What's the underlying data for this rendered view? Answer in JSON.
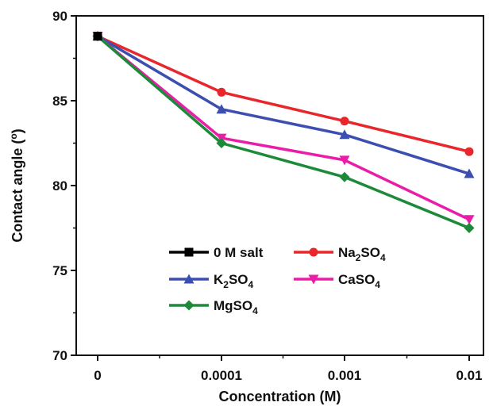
{
  "chart_data": {
    "type": "line",
    "xlabel": "Concentration (M)",
    "ylabel": "Contact angle (",
    "ylabel_unit_sup": "o",
    "ylabel_close": ")",
    "categories": [
      "0",
      "0.0001",
      "0.001",
      "0.01"
    ],
    "ylim": [
      70,
      90
    ],
    "yticks": [
      "70",
      "75",
      "80",
      "85",
      "90"
    ],
    "grid": false,
    "legend_position": "bottom-left inside plot",
    "series": [
      {
        "name": "0 M salt",
        "name_parts": [
          [
            "0 M salt",
            false
          ]
        ],
        "color": "#000000",
        "marker": "square",
        "values": [
          88.8,
          null,
          null,
          null
        ]
      },
      {
        "name": "Na2SO4",
        "name_parts": [
          [
            "Na",
            false
          ],
          [
            "2",
            true
          ],
          [
            "SO",
            false
          ],
          [
            "4",
            true
          ]
        ],
        "color": "#e8262b",
        "marker": "circle",
        "values": [
          88.8,
          85.5,
          83.8,
          82.0
        ]
      },
      {
        "name": "K2SO4",
        "name_parts": [
          [
            "K",
            false
          ],
          [
            "2",
            true
          ],
          [
            "SO",
            false
          ],
          [
            "4",
            true
          ]
        ],
        "color": "#3c4fb0",
        "marker": "triangle-up",
        "values": [
          88.8,
          84.5,
          83.0,
          80.7
        ]
      },
      {
        "name": "CaSO4",
        "name_parts": [
          [
            "CaSO",
            false
          ],
          [
            "4",
            true
          ]
        ],
        "color": "#ea1ca8",
        "marker": "triangle-down",
        "values": [
          88.8,
          82.8,
          81.5,
          78.0
        ]
      },
      {
        "name": "MgSO4",
        "name_parts": [
          [
            "MgSO",
            false
          ],
          [
            "4",
            true
          ]
        ],
        "color": "#1d8a3a",
        "marker": "diamond",
        "values": [
          88.8,
          82.5,
          80.5,
          77.5
        ]
      }
    ]
  }
}
